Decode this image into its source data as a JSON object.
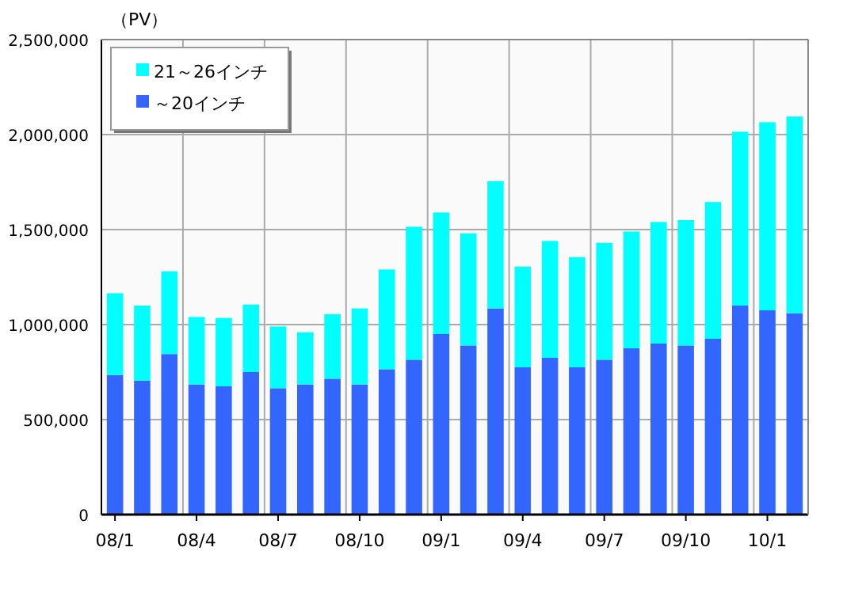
{
  "chart_data": {
    "type": "bar",
    "stacked": true,
    "ylabel": "（PV）",
    "categories": [
      "08/1",
      null,
      null,
      "08/4",
      null,
      null,
      "08/7",
      null,
      null,
      "08/10",
      null,
      null,
      "09/1",
      null,
      null,
      "09/4",
      null,
      null,
      "09/7",
      null,
      null,
      "09/10",
      null,
      null,
      "10/1",
      null
    ],
    "series": [
      {
        "name": "～20インチ",
        "color": "#3366ff",
        "values": [
          735000,
          705000,
          845000,
          685000,
          675000,
          750000,
          665000,
          685000,
          715000,
          685000,
          765000,
          815000,
          950000,
          890000,
          1085000,
          775000,
          825000,
          775000,
          815000,
          875000,
          900000,
          890000,
          925000,
          1100000,
          1075000,
          1060000
        ]
      },
      {
        "name": "21～26インチ",
        "color": "#00ffff",
        "values": [
          430000,
          395000,
          435000,
          355000,
          360000,
          355000,
          325000,
          275000,
          340000,
          400000,
          525000,
          700000,
          640000,
          590000,
          670000,
          530000,
          615000,
          580000,
          615000,
          615000,
          640000,
          660000,
          720000,
          915000,
          990000,
          1035000
        ]
      }
    ],
    "ylim": [
      0,
      2500000
    ],
    "yticks": [
      {
        "value": 0,
        "label": "0"
      },
      {
        "value": 500000,
        "label": "500,000"
      },
      {
        "value": 1000000,
        "label": "1,000,000"
      },
      {
        "value": 1500000,
        "label": "1,500,000"
      },
      {
        "value": 2000000,
        "label": "2,000,000"
      },
      {
        "value": 2500000,
        "label": "2,500,000"
      }
    ],
    "grid": true,
    "legend": "top left"
  }
}
